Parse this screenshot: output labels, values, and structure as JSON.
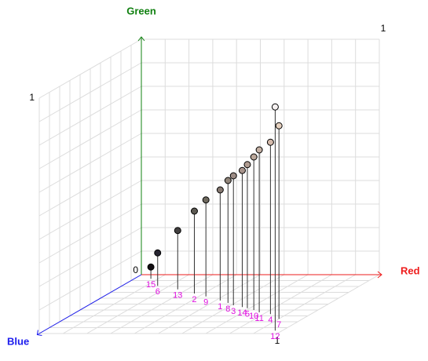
{
  "chart_data": {
    "type": "scatter3d",
    "xaxis": {
      "label": "Red",
      "color": "#ee1c1c"
    },
    "yaxis": {
      "label": "Green",
      "color": "#108010"
    },
    "zaxis": {
      "label": "Blue",
      "color": "#1c1cee"
    },
    "xlim": [
      0,
      1
    ],
    "ylim": [
      0,
      1
    ],
    "zlim": [
      0,
      1
    ],
    "grid": true,
    "labels": [
      "15",
      "6",
      "13",
      "2",
      "9",
      "1",
      "8",
      "3",
      "14",
      "5",
      "10",
      "11",
      "4",
      "7",
      "12"
    ],
    "x": [
      0.07,
      0.15,
      0.26,
      0.36,
      0.43,
      0.52,
      0.57,
      0.61,
      0.66,
      0.69,
      0.73,
      0.77,
      0.83,
      0.9,
      0.97
    ],
    "y": [
      0.05,
      0.14,
      0.25,
      0.35,
      0.41,
      0.47,
      0.52,
      0.55,
      0.58,
      0.61,
      0.65,
      0.69,
      0.73,
      0.82,
      0.95
    ],
    "z": [
      0.07,
      0.19,
      0.25,
      0.32,
      0.37,
      0.44,
      0.48,
      0.52,
      0.55,
      0.57,
      0.6,
      0.64,
      0.67,
      0.75,
      0.95
    ]
  }
}
